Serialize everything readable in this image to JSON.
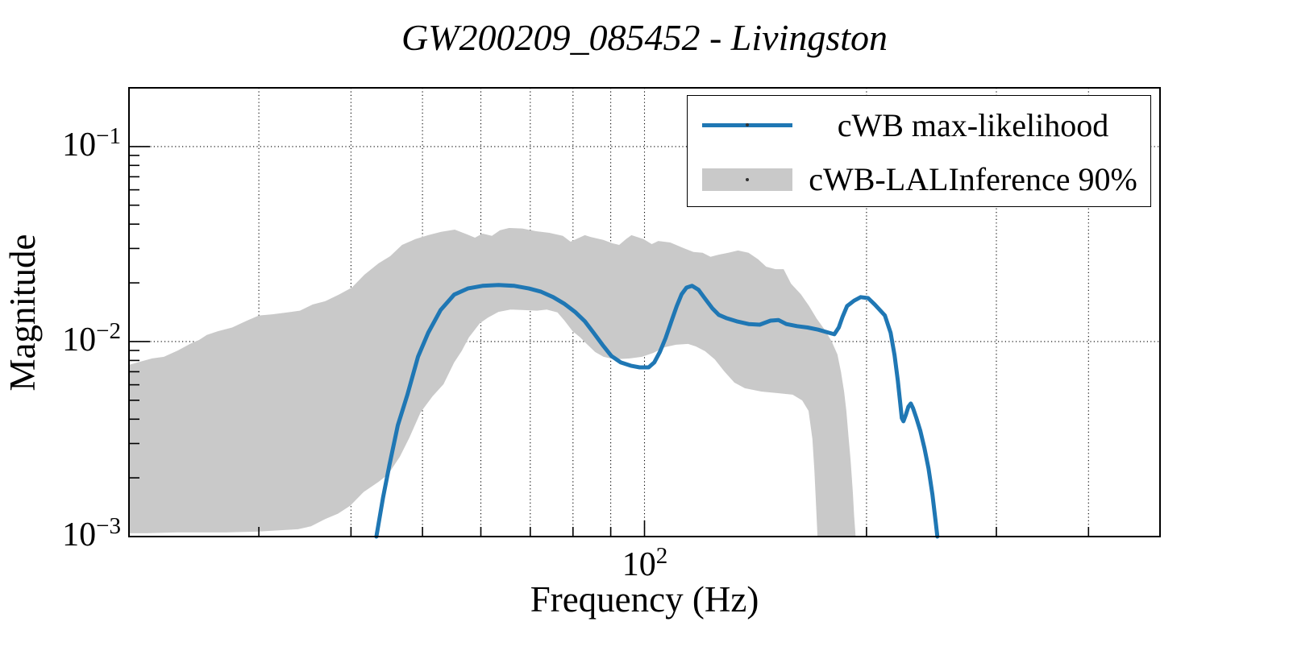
{
  "title": "GW200209_085452 - Livingston",
  "colors": {
    "line": "#1f77b4",
    "band": "#c9c9c9",
    "axis": "#000000",
    "grid": "#000000",
    "background": "#ffffff"
  },
  "legend": {
    "items": [
      {
        "label": "cWB max-likelihood",
        "type": "line"
      },
      {
        "label": "cWB-LALInference 90%",
        "type": "patch"
      }
    ],
    "position": "upper right"
  },
  "axes": {
    "xlabel": "Frequency (Hz)",
    "ylabel": "Magnitude",
    "x_scale": "log",
    "y_scale": "log",
    "x_major_ticks": [
      100
    ],
    "x_minor_ticks": [
      30,
      40,
      50,
      60,
      70,
      80,
      90,
      200,
      300,
      400
    ],
    "y_major_ticks": [
      0.1,
      0.01,
      0.001
    ],
    "y_minor_ticks": [
      0.09,
      0.08,
      0.07,
      0.06,
      0.05,
      0.04,
      0.03,
      0.02,
      0.009,
      0.008,
      0.007,
      0.006,
      0.005,
      0.004,
      0.003,
      0.002
    ],
    "y_grid_values": [
      0.1,
      0.01
    ],
    "x_tick_labels": [
      {
        "base": "10",
        "exp": "2",
        "value": 100
      }
    ],
    "y_tick_labels": [
      {
        "base": "10",
        "exp": "−1",
        "value": 0.1
      },
      {
        "base": "10",
        "exp": "−2",
        "value": 0.01
      },
      {
        "base": "10",
        "exp": "−3",
        "value": 0.001
      }
    ]
  },
  "chart_data": {
    "type": "line",
    "title": "GW200209_085452 - Livingston",
    "xlabel": "Frequency (Hz)",
    "ylabel": "Magnitude",
    "xscale": "log",
    "yscale": "log",
    "xlim": [
      20,
      500
    ],
    "ylim": [
      0.001,
      0.2
    ],
    "grid": true,
    "legend_position": "upper right",
    "series": [
      {
        "name": "cWB max-likelihood",
        "type": "line",
        "color": "#1f77b4",
        "points": [
          [
            43.3,
            0.001
          ],
          [
            44.2,
            0.00158
          ],
          [
            45.1,
            0.00233
          ],
          [
            46.3,
            0.00372
          ],
          [
            47.7,
            0.00534
          ],
          [
            49.3,
            0.00835
          ],
          [
            50.9,
            0.0111
          ],
          [
            52.9,
            0.0145
          ],
          [
            55.2,
            0.0174
          ],
          [
            57.6,
            0.0187
          ],
          [
            60.3,
            0.0193
          ],
          [
            63.4,
            0.0195
          ],
          [
            66.6,
            0.0193
          ],
          [
            69.7,
            0.0187
          ],
          [
            72.4,
            0.018
          ],
          [
            75.2,
            0.0169
          ],
          [
            77.9,
            0.0156
          ],
          [
            80.5,
            0.0142
          ],
          [
            83.0,
            0.0127
          ],
          [
            85.3,
            0.0111
          ],
          [
            87.7,
            0.00963
          ],
          [
            90.2,
            0.00843
          ],
          [
            92.9,
            0.00781
          ],
          [
            95.8,
            0.00752
          ],
          [
            98.5,
            0.00737
          ],
          [
            101.3,
            0.00737
          ],
          [
            103.1,
            0.00781
          ],
          [
            104.9,
            0.00884
          ],
          [
            106.8,
            0.0104
          ],
          [
            108.7,
            0.0126
          ],
          [
            110.6,
            0.0152
          ],
          [
            112.3,
            0.0175
          ],
          [
            114.0,
            0.0189
          ],
          [
            116.0,
            0.0193
          ],
          [
            118.4,
            0.0184
          ],
          [
            120.8,
            0.0166
          ],
          [
            123.6,
            0.0148
          ],
          [
            126.1,
            0.0137
          ],
          [
            129.0,
            0.0132
          ],
          [
            133.3,
            0.0127
          ],
          [
            138.4,
            0.0123
          ],
          [
            143.3,
            0.0122
          ],
          [
            148.2,
            0.0128
          ],
          [
            151.9,
            0.0129
          ],
          [
            155.7,
            0.0123
          ],
          [
            161.0,
            0.012
          ],
          [
            166.4,
            0.0118
          ],
          [
            172.0,
            0.0115
          ],
          [
            177.8,
            0.0111
          ],
          [
            180.9,
            0.0109
          ],
          [
            183.4,
            0.0118
          ],
          [
            185.6,
            0.0134
          ],
          [
            188.2,
            0.0152
          ],
          [
            192.4,
            0.0162
          ],
          [
            196.4,
            0.0169
          ],
          [
            201.0,
            0.0167
          ],
          [
            205.2,
            0.0155
          ],
          [
            211.8,
            0.0136
          ],
          [
            215.6,
            0.0111
          ],
          [
            218.3,
            0.00851
          ],
          [
            220.5,
            0.00633
          ],
          [
            222.2,
            0.00485
          ],
          [
            223.3,
            0.00405
          ],
          [
            224.4,
            0.0039
          ],
          [
            226.1,
            0.00421
          ],
          [
            227.9,
            0.00463
          ],
          [
            229.6,
            0.00481
          ],
          [
            231.3,
            0.00454
          ],
          [
            233.7,
            0.00405
          ],
          [
            236.6,
            0.00348
          ],
          [
            239.6,
            0.00285
          ],
          [
            242.7,
            0.00224
          ],
          [
            245.7,
            0.00164
          ],
          [
            248.2,
            0.00119
          ],
          [
            249.5,
            0.001
          ]
        ]
      },
      {
        "name": "cWB-LALInference 90%",
        "type": "band",
        "color": "#c9c9c9",
        "upper": [
          [
            20.0,
            0.00759
          ],
          [
            20.7,
            0.00788
          ],
          [
            21.5,
            0.00819
          ],
          [
            22.3,
            0.00835
          ],
          [
            23.3,
            0.009
          ],
          [
            24.2,
            0.00972
          ],
          [
            24.9,
            0.0102
          ],
          [
            25.5,
            0.0108
          ],
          [
            26.4,
            0.0113
          ],
          [
            27.6,
            0.0118
          ],
          [
            28.9,
            0.0128
          ],
          [
            30.0,
            0.0136
          ],
          [
            31.3,
            0.0138
          ],
          [
            32.8,
            0.0141
          ],
          [
            34.1,
            0.0144
          ],
          [
            35.5,
            0.0155
          ],
          [
            36.9,
            0.0161
          ],
          [
            38.5,
            0.0174
          ],
          [
            40.1,
            0.0189
          ],
          [
            41.7,
            0.022
          ],
          [
            43.6,
            0.0252
          ],
          [
            45.2,
            0.0274
          ],
          [
            46.9,
            0.0313
          ],
          [
            48.9,
            0.0335
          ],
          [
            50.9,
            0.0351
          ],
          [
            53.0,
            0.0365
          ],
          [
            55.3,
            0.0375
          ],
          [
            57.5,
            0.0354
          ],
          [
            58.9,
            0.0341
          ],
          [
            60.3,
            0.0358
          ],
          [
            62.1,
            0.0348
          ],
          [
            63.7,
            0.0372
          ],
          [
            65.5,
            0.0382
          ],
          [
            68.3,
            0.038
          ],
          [
            71.3,
            0.0368
          ],
          [
            74.3,
            0.0361
          ],
          [
            77.5,
            0.0348
          ],
          [
            79.4,
            0.0325
          ],
          [
            80.8,
            0.0335
          ],
          [
            83.0,
            0.0351
          ],
          [
            84.5,
            0.0344
          ],
          [
            87.9,
            0.0332
          ],
          [
            90.5,
            0.0319
          ],
          [
            92.4,
            0.0313
          ],
          [
            94.4,
            0.0335
          ],
          [
            96.0,
            0.0351
          ],
          [
            99.7,
            0.0335
          ],
          [
            102.3,
            0.0316
          ],
          [
            104.4,
            0.0328
          ],
          [
            108.4,
            0.0322
          ],
          [
            113.1,
            0.0301
          ],
          [
            116.5,
            0.0288
          ],
          [
            119.9,
            0.0285
          ],
          [
            122.9,
            0.0272
          ],
          [
            126.1,
            0.0279
          ],
          [
            129.9,
            0.0285
          ],
          [
            133.9,
            0.0293
          ],
          [
            138.4,
            0.0285
          ],
          [
            142.6,
            0.0264
          ],
          [
            146.2,
            0.0242
          ],
          [
            150.5,
            0.0235
          ],
          [
            154.4,
            0.0235
          ],
          [
            158.0,
            0.0198
          ],
          [
            162.9,
            0.0175
          ],
          [
            167.2,
            0.0152
          ],
          [
            171.2,
            0.0131
          ],
          [
            175.8,
            0.0114
          ],
          [
            179.4,
            0.01
          ],
          [
            182.6,
            0.00859
          ],
          [
            184.7,
            0.00696
          ],
          [
            186.5,
            0.00554
          ],
          [
            187.8,
            0.00441
          ],
          [
            189.0,
            0.00332
          ],
          [
            190.3,
            0.00245
          ],
          [
            191.6,
            0.0017
          ],
          [
            192.4,
            0.00128
          ],
          [
            193.3,
            0.001
          ]
        ],
        "lower": [
          [
            20.0,
            0.00104
          ],
          [
            21.1,
            0.00104
          ],
          [
            23.2,
            0.00105
          ],
          [
            25.0,
            0.00105
          ],
          [
            27.0,
            0.00105
          ],
          [
            29.8,
            0.00106
          ],
          [
            32.5,
            0.00108
          ],
          [
            33.9,
            0.00109
          ],
          [
            35.3,
            0.00113
          ],
          [
            36.9,
            0.00123
          ],
          [
            38.4,
            0.00131
          ],
          [
            39.9,
            0.00144
          ],
          [
            41.6,
            0.00169
          ],
          [
            43.6,
            0.00191
          ],
          [
            44.9,
            0.00208
          ],
          [
            46.6,
            0.00257
          ],
          [
            48.0,
            0.00322
          ],
          [
            49.7,
            0.00433
          ],
          [
            51.6,
            0.00524
          ],
          [
            53.4,
            0.00604
          ],
          [
            55.2,
            0.00781
          ],
          [
            56.5,
            0.00892
          ],
          [
            57.8,
            0.0105
          ],
          [
            59.8,
            0.0124
          ],
          [
            61.4,
            0.0133
          ],
          [
            63.4,
            0.0142
          ],
          [
            65.8,
            0.0146
          ],
          [
            68.7,
            0.0145
          ],
          [
            71.5,
            0.0144
          ],
          [
            73.7,
            0.0146
          ],
          [
            76.2,
            0.0141
          ],
          [
            77.9,
            0.0128
          ],
          [
            79.9,
            0.0113
          ],
          [
            81.8,
            0.0105
          ],
          [
            83.5,
            0.00972
          ],
          [
            85.7,
            0.00884
          ],
          [
            88.0,
            0.00835
          ],
          [
            91.1,
            0.00811
          ],
          [
            95.5,
            0.00819
          ],
          [
            99.2,
            0.00835
          ],
          [
            102.8,
            0.00875
          ],
          [
            106.5,
            0.00935
          ],
          [
            110.3,
            0.00963
          ],
          [
            114.6,
            0.00972
          ],
          [
            117.4,
            0.00944
          ],
          [
            120.8,
            0.00892
          ],
          [
            124.5,
            0.00811
          ],
          [
            128.3,
            0.00703
          ],
          [
            132.4,
            0.00616
          ],
          [
            136.8,
            0.00576
          ],
          [
            144.0,
            0.00554
          ],
          [
            151.2,
            0.00544
          ],
          [
            158.8,
            0.00534
          ],
          [
            163.6,
            0.00499
          ],
          [
            166.9,
            0.00441
          ],
          [
            168.9,
            0.00316
          ],
          [
            170.0,
            0.00216
          ],
          [
            170.8,
            0.00148
          ],
          [
            171.6,
            0.001
          ]
        ]
      }
    ]
  }
}
